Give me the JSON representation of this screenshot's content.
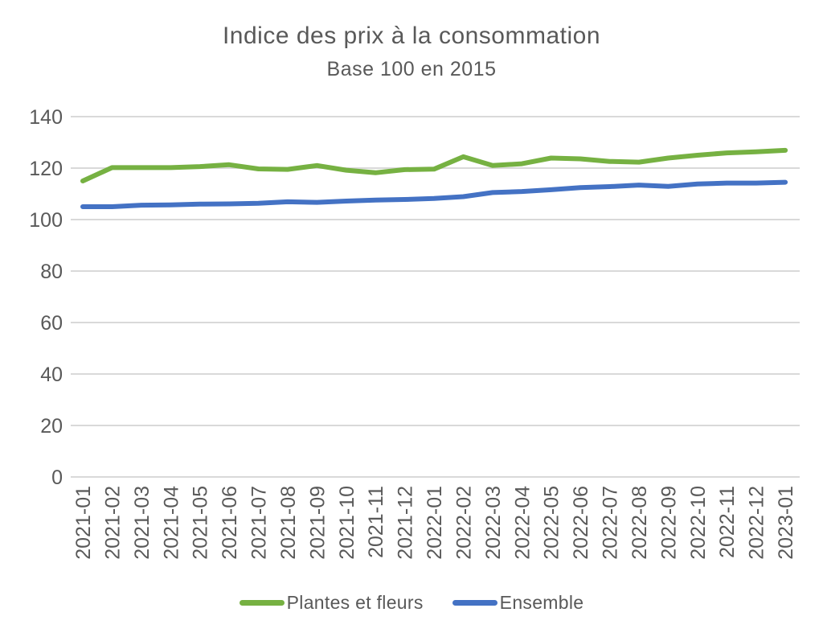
{
  "header": {
    "title": "Indice des prix à la consommation",
    "subtitle": "Base 100 en 2015"
  },
  "colors": {
    "text": "#595959",
    "grid": "#D9D9D9",
    "background": "#FFFFFF",
    "series_green": "#76B142",
    "series_blue": "#4472C4"
  },
  "chart_data": {
    "type": "line",
    "title": "Indice des prix à la consommation",
    "subtitle": "Base 100 en 2015",
    "xlabel": "",
    "ylabel": "",
    "ylim": [
      0,
      140
    ],
    "ytick_step": 20,
    "yticks": [
      0,
      20,
      40,
      60,
      80,
      100,
      120,
      140
    ],
    "grid": "horizontal",
    "legend_position": "bottom",
    "categories": [
      "2021-01",
      "2021-02",
      "2021-03",
      "2021-04",
      "2021-05",
      "2021-06",
      "2021-07",
      "2021-08",
      "2021-09",
      "2021-10",
      "2021-11",
      "2021-12",
      "2022-01",
      "2022-02",
      "2022-03",
      "2022-04",
      "2022-05",
      "2022-06",
      "2022-07",
      "2022-08",
      "2022-09",
      "2022-10",
      "2022-11",
      "2022-12",
      "2023-01"
    ],
    "series": [
      {
        "name": "Plantes et fleurs",
        "color": "#76B142",
        "values": [
          115.0,
          120.2,
          120.2,
          120.2,
          120.6,
          121.3,
          119.7,
          119.5,
          121.0,
          119.2,
          118.2,
          119.4,
          119.6,
          124.4,
          121.0,
          121.7,
          123.9,
          123.6,
          122.6,
          122.3,
          123.9,
          125.0,
          125.9,
          126.3,
          126.9
        ]
      },
      {
        "name": "Ensemble",
        "color": "#4472C4",
        "values": [
          105.0,
          105.0,
          105.6,
          105.7,
          106.0,
          106.1,
          106.3,
          106.9,
          106.7,
          107.2,
          107.6,
          107.8,
          108.2,
          108.9,
          110.5,
          110.9,
          111.6,
          112.4,
          112.8,
          113.4,
          112.9,
          113.8,
          114.2,
          114.2,
          114.5
        ]
      }
    ]
  }
}
